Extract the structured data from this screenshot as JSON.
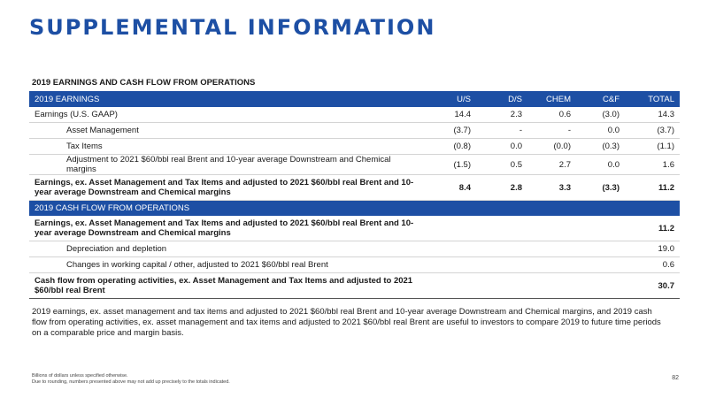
{
  "title": "SUPPLEMENTAL INFORMATION",
  "section_label": "2019 EARNINGS AND CASH FLOW FROM OPERATIONS",
  "earnings": {
    "header": {
      "label": "2019 EARNINGS",
      "cols": [
        "U/S",
        "D/S",
        "CHEM",
        "C&F",
        "TOTAL"
      ]
    },
    "rows": [
      {
        "label": "Earnings (U.S. GAAP)",
        "values": [
          "14.4",
          "2.3",
          "0.6",
          "(3.0)",
          "14.3"
        ]
      },
      {
        "label": "Asset Management",
        "values": [
          "(3.7)",
          "-",
          "-",
          "0.0",
          "(3.7)"
        ]
      },
      {
        "label": "Tax Items",
        "values": [
          "(0.8)",
          "0.0",
          "(0.0)",
          "(0.3)",
          "(1.1)"
        ]
      },
      {
        "label": "Adjustment to 2021 $60/bbl real Brent and 10-year average Downstream and Chemical margins",
        "values": [
          "(1.5)",
          "0.5",
          "2.7",
          "0.0",
          "1.6"
        ]
      }
    ],
    "total": {
      "label": "Earnings, ex. Asset Management and Tax Items and adjusted to 2021 $60/bbl real Brent and 10-year average Downstream and Chemical margins",
      "values": [
        "8.4",
        "2.8",
        "3.3",
        "(3.3)",
        "11.2"
      ]
    }
  },
  "cashflow": {
    "header": "2019 CASH FLOW FROM OPERATIONS",
    "start": {
      "label": "Earnings, ex. Asset Management and Tax Items and adjusted to 2021 $60/bbl real Brent and 10-year average Downstream and Chemical margins",
      "value": "11.2"
    },
    "rows": [
      {
        "label": "Depreciation and depletion",
        "value": "19.0"
      },
      {
        "label": "Changes in working capital / other, adjusted to 2021 $60/bbl real Brent",
        "value": "0.6"
      }
    ],
    "total": {
      "label": "Cash flow from operating activities, ex. Asset Management and Tax Items and adjusted to 2021 $60/bbl real Brent",
      "value": "30.7"
    }
  },
  "note": "2019 earnings, ex. asset management and tax items and adjusted to 2021 $60/bbl real Brent and 10-year average Downstream and Chemical margins, and 2019 cash flow from operating activities, ex. asset management and tax items and adjusted to 2021 $60/bbl real Brent are useful to investors to compare 2019 to future time periods on a comparable price and margin basis.",
  "footnotes": [
    "Billions of dollars unless specified otherwise.",
    "Due to rounding, numbers presented above may not add up precisely to the totals indicated."
  ],
  "page_number": "82",
  "colors": {
    "accent": "#1d4fa4"
  }
}
